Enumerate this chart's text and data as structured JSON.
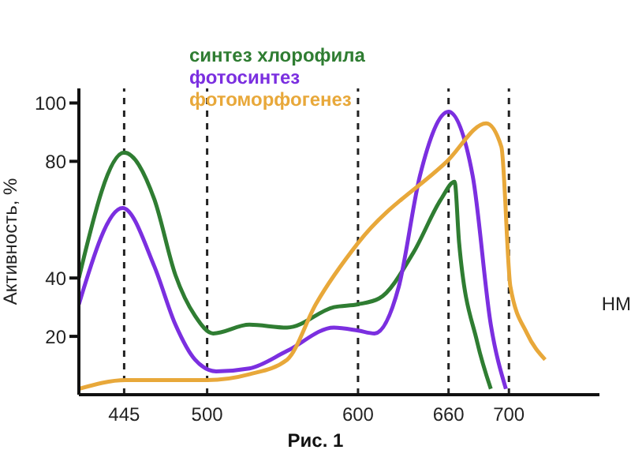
{
  "chart_data": {
    "type": "line",
    "ylabel": "Активность, %",
    "xlabel": "НМ",
    "annotations": [
      "Рис. 1"
    ],
    "xlim": [
      415,
      760
    ],
    "xticks": [
      445,
      500,
      600,
      660,
      700
    ],
    "ylim": [
      0,
      105
    ],
    "yticks": [
      20,
      40,
      80,
      100
    ],
    "grid": false,
    "legend": "top",
    "marker": "none",
    "line_style": "solid",
    "series": [
      {
        "name": "синтез хлорофила",
        "color": "#2f7d32",
        "x": [
          415,
          445,
          465,
          479,
          492,
          504,
          528,
          553,
          584,
          600,
          614,
          637,
          655,
          664,
          667,
          679,
          688
        ],
        "values": [
          40,
          83,
          67,
          41,
          27,
          21,
          24,
          23,
          30,
          31,
          33,
          49,
          67,
          73,
          52,
          18,
          2
        ]
      },
      {
        "name": "фотосинтез",
        "color": "#7b2fe0",
        "x": [
          415,
          444,
          465,
          479,
          492,
          506,
          528,
          553,
          584,
          600,
          611,
          627,
          641,
          660,
          676,
          688,
          698
        ],
        "values": [
          31,
          64,
          44,
          24,
          12,
          8,
          9,
          15,
          23,
          22,
          21,
          37,
          75,
          97,
          75,
          24,
          2
        ]
      },
      {
        "name": "фотоморфогенез",
        "color": "#e8a83a",
        "x": [
          415,
          446,
          500,
          528,
          553,
          572,
          600,
          659,
          685,
          695,
          701,
          712,
          724
        ],
        "values": [
          2,
          5,
          5,
          7,
          12,
          31,
          52,
          80,
          93,
          85,
          37,
          21,
          12
        ]
      }
    ],
    "ref_lines": [
      {
        "axis": "x",
        "value": 445,
        "color": "#222222",
        "line_style": "dashed"
      },
      {
        "axis": "x",
        "value": 500,
        "color": "#222222",
        "line_style": "dashed"
      },
      {
        "axis": "x",
        "value": 600,
        "color": "#222222",
        "line_style": "dashed"
      },
      {
        "axis": "x",
        "value": 660,
        "color": "#222222",
        "line_style": "dashed"
      },
      {
        "axis": "x",
        "value": 700,
        "color": "#222222",
        "line_style": "dashed"
      }
    ]
  }
}
